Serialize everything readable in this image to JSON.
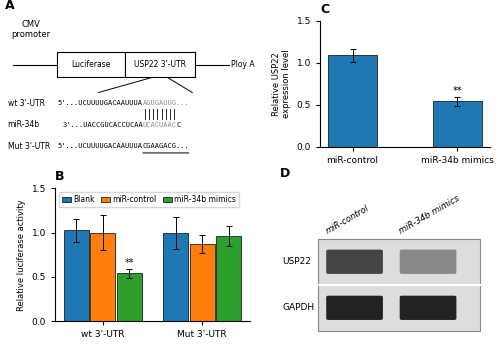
{
  "chart_data": [
    {
      "type": "diagram",
      "title": "A",
      "annotations": [
        "CMV\npromoter",
        "Luciferase",
        "USP22 3'-UTR",
        "Ploy A",
        "wt 3'-UTR",
        "5'...UCUUUUGACAAUUUA",
        "AGUGAUUG...",
        "miR-34b",
        "3'...UACCGUCACCUCAA",
        "UCACUAAC",
        "C",
        "Mut 3'-UTR",
        "5'...UCUUUUGACAAUUUA",
        "CGAAGACG..."
      ],
      "color": "#8888aa"
    },
    {
      "type": "bar",
      "title": "B",
      "ylabel": "Relative luciferase activity",
      "categories": [
        "wt 3'-UTR",
        "Mut 3'-UTR"
      ],
      "series": [
        {
          "name": "Blank",
          "values": [
            1.03,
            1.0
          ],
          "errors": [
            0.13,
            0.18
          ]
        },
        {
          "name": "miR-control",
          "values": [
            1.0,
            0.87
          ],
          "errors": [
            0.2,
            0.1
          ]
        },
        {
          "name": "miR-34b mimics",
          "values": [
            0.54,
            0.96
          ],
          "errors": [
            0.05,
            0.11
          ]
        }
      ],
      "ylim": [
        0,
        1.5
      ],
      "yticks": [
        0.0,
        0.5,
        1.0,
        1.5
      ],
      "legend": "upper left",
      "annotations": [
        {
          "text": "**",
          "x": "wt 3'-UTR",
          "series": "miR-34b mimics"
        }
      ]
    },
    {
      "type": "bar",
      "title": "C",
      "ylabel": "Relative USP22\nexpression level",
      "categories": [
        "miR-control",
        "miR-34b mimics"
      ],
      "values": [
        1.09,
        0.54
      ],
      "errors": [
        0.08,
        0.05
      ],
      "ylim": [
        0,
        1.5
      ],
      "yticks": [
        0.0,
        0.5,
        1.0,
        1.5
      ],
      "annotations": [
        {
          "text": "**",
          "x": "miR-34b mimics"
        }
      ]
    },
    {
      "type": "blot",
      "title": "D",
      "categories": [
        "miR-control",
        "miR-34b mimics"
      ],
      "series": [
        {
          "name": "USP22",
          "colors": [
            "#444444",
            "#888888"
          ]
        },
        {
          "name": "GAPDH",
          "colors": [
            "#222222",
            "#222222"
          ]
        }
      ]
    }
  ]
}
